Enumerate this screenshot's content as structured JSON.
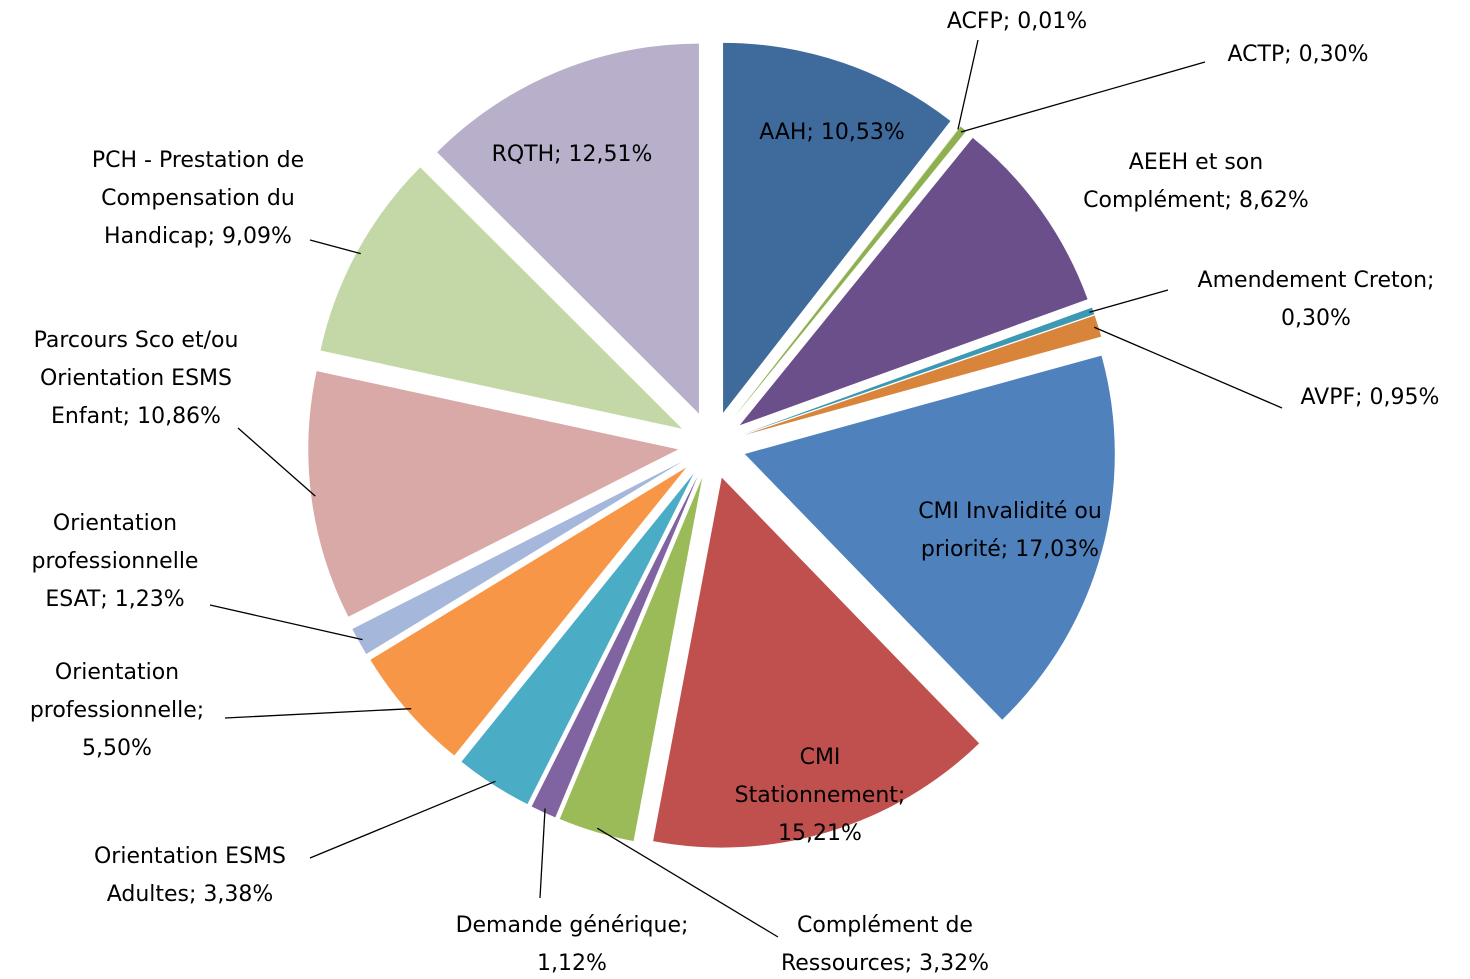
{
  "chart_data": {
    "type": "pie",
    "labels": [
      [
        "AAH; 10,53%"
      ],
      [
        "ACFP; 0,01%"
      ],
      [
        "ACTP; 0,30%"
      ],
      [
        "AEEH et son",
        "Complément; 8,62%"
      ],
      [
        "Amendement Creton;",
        "0,30%"
      ],
      [
        "AVPF; 0,95%"
      ],
      [
        "CMI Invalidité ou",
        "priorité; 17,03%"
      ],
      [
        "CMI",
        "Stationnement;",
        "15,21%"
      ],
      [
        "Complément de",
        "Ressources; 3,32%"
      ],
      [
        "Demande générique;",
        "1,12%"
      ],
      [
        "Orientation ESMS",
        "Adultes; 3,38%"
      ],
      [
        "Orientation",
        "professionnelle;",
        "5,50%"
      ],
      [
        "Orientation",
        "professionnelle",
        "ESAT; 1,23%"
      ],
      [
        "Parcours Sco et/ou",
        "Orientation ESMS",
        "Enfant; 10,86%"
      ],
      [
        "PCH - Prestation de",
        "Compensation du",
        "Handicap; 9,09%"
      ],
      [
        "RQTH; 12,51%"
      ]
    ],
    "values": [
      10.53,
      0.01,
      0.3,
      8.62,
      0.3,
      0.95,
      17.03,
      15.21,
      3.32,
      1.12,
      3.38,
      5.5,
      1.23,
      10.86,
      9.09,
      12.51
    ],
    "colors": [
      "#3e6a9c",
      "#9bbb59",
      "#8fb050",
      "#6a4f8a",
      "#3d98b3",
      "#d9843b",
      "#4f81bd",
      "#c0504d",
      "#9bbb59",
      "#8064a2",
      "#4bacc6",
      "#f79646",
      "#a5b8dc",
      "#d9a9a8",
      "#c4d7a6",
      "#b8b0cb"
    ]
  }
}
